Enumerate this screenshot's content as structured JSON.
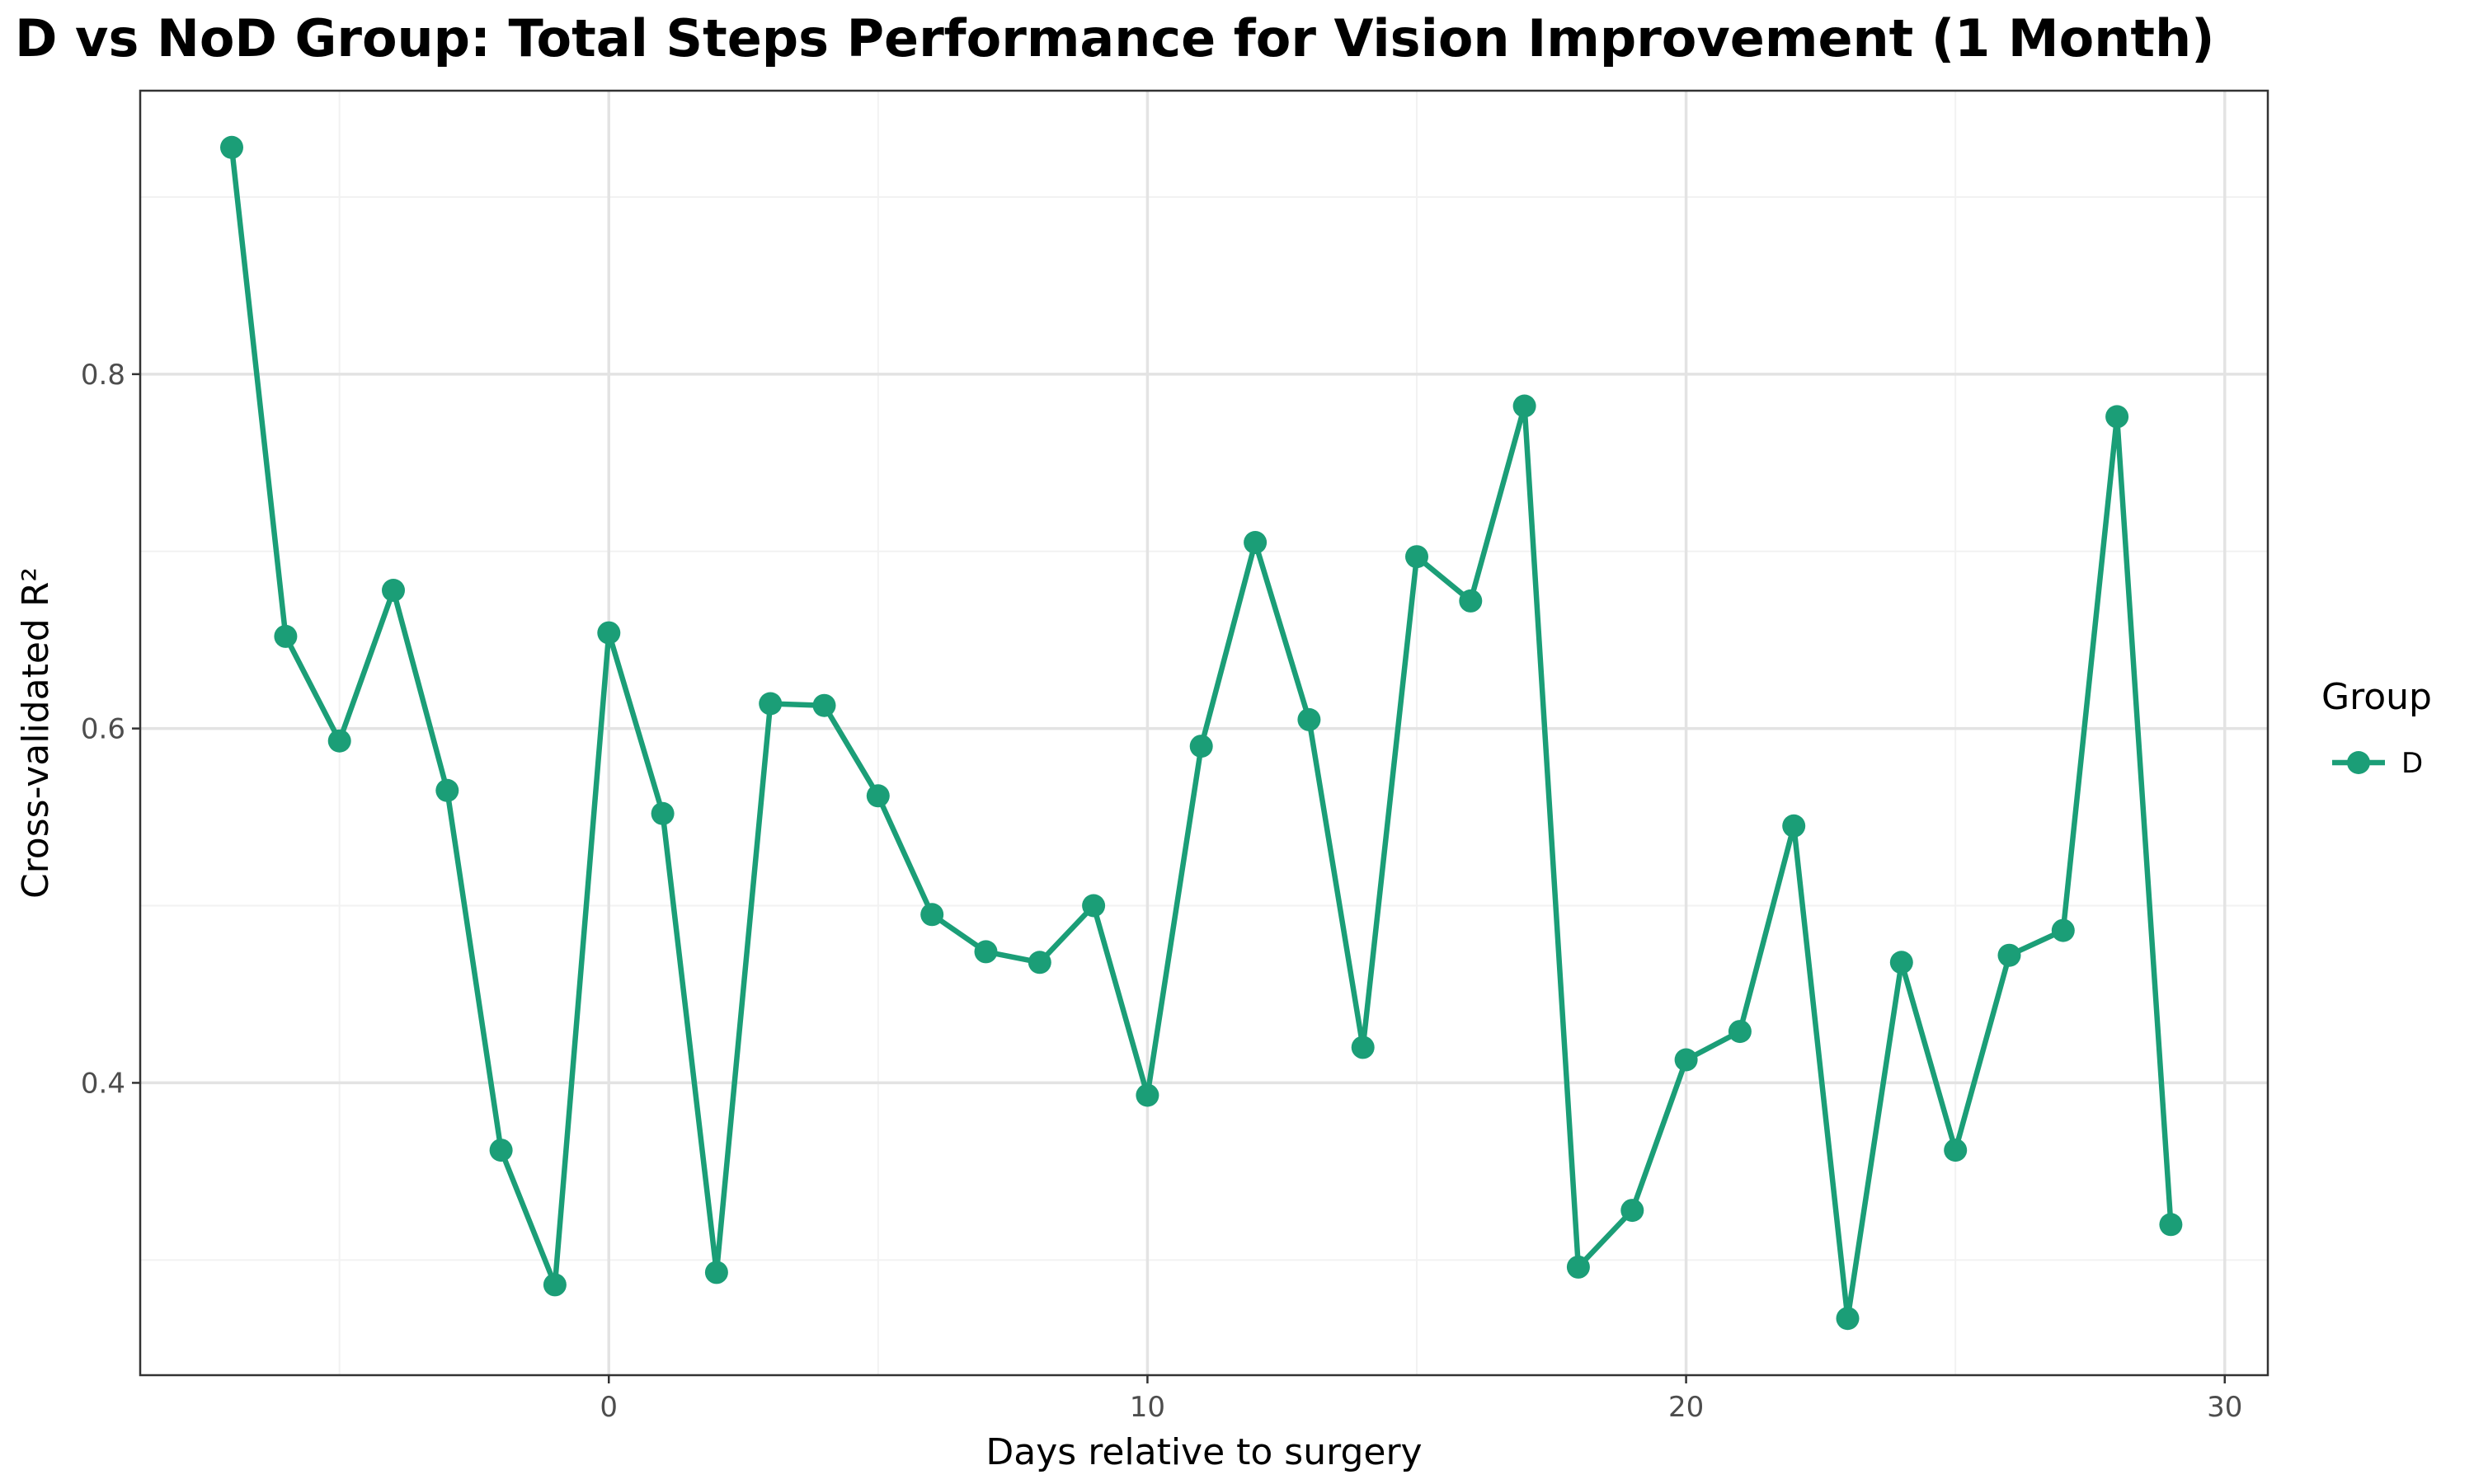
{
  "chart_data": {
    "type": "line",
    "title": "D vs NoD Group: Total Steps Performance for Vision Improvement (1 Month)",
    "xlabel": "Days relative to surgery",
    "ylabel": "Cross-validated R²",
    "x_ticks": [
      "0",
      "10",
      "20",
      "30"
    ],
    "y_ticks": [
      "0.4",
      "0.6",
      "0.8"
    ],
    "xlim": [
      -8.7,
      30.8
    ],
    "ylim": [
      0.235,
      0.96
    ],
    "grid": true,
    "legend": {
      "title": "Group",
      "position": "right",
      "entries": [
        "D"
      ]
    },
    "series": [
      {
        "name": "D",
        "color": "#1b9e77",
        "x": [
          -7,
          -6,
          -5,
          -4,
          -3,
          -2,
          -1,
          0,
          1,
          2,
          3,
          4,
          5,
          6,
          7,
          8,
          9,
          10,
          11,
          12,
          13,
          14,
          15,
          16,
          17,
          18,
          19,
          20,
          21,
          22,
          23,
          24,
          25,
          26,
          27,
          28,
          29
        ],
        "y": [
          0.928,
          0.652,
          0.593,
          0.678,
          0.565,
          0.362,
          0.286,
          0.654,
          0.552,
          0.293,
          0.614,
          0.613,
          0.562,
          0.495,
          0.474,
          0.468,
          0.5,
          0.393,
          0.59,
          0.705,
          0.605,
          0.42,
          0.697,
          0.672,
          0.782,
          0.296,
          0.328,
          0.413,
          0.429,
          0.545,
          0.267,
          0.468,
          0.362,
          0.472,
          0.486,
          0.776,
          0.32
        ]
      }
    ]
  }
}
